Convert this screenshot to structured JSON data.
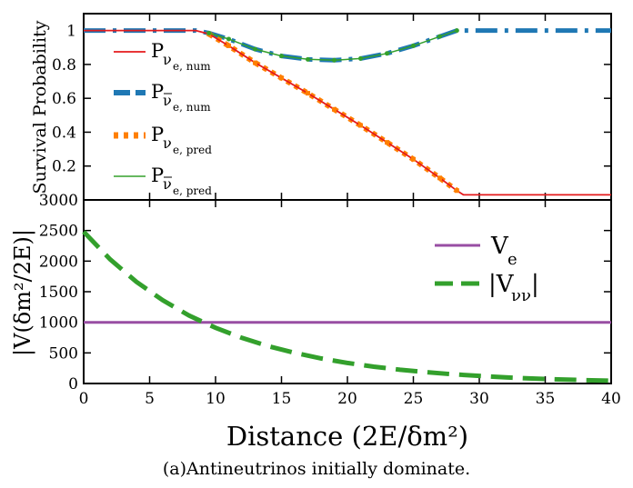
{
  "caption": "(a)Antineutrinos initially dominate.",
  "colors": {
    "nue_num": "#e41a1c",
    "nuebar_num": "#1f78b4",
    "nue_pred": "#ff7f00",
    "nuebar_pred": "#33a02c",
    "Ve": "#984ea3",
    "Vnunu": "#33a02c"
  },
  "chart_data": [
    {
      "type": "line",
      "ylabel": "Survival Probability",
      "xlim": [
        0,
        40
      ],
      "ylim": [
        0,
        1.1
      ],
      "yticks": [
        "0.2",
        "0.4",
        "0.6",
        "0.8",
        "1"
      ],
      "ytick_values": [
        0.2,
        0.4,
        0.6,
        0.8,
        1.0
      ],
      "grid": false,
      "legend_placement": "left",
      "series": [
        {
          "key": "nue_num",
          "legend_main": "P",
          "legend_sub1": "ν",
          "legend_sub2": "e, num",
          "legend_bar": false,
          "style": "solid",
          "x": [
            0,
            8.5,
            9.5,
            11,
            13,
            15,
            17,
            19,
            21,
            23,
            25,
            27,
            28.3,
            28.8,
            40
          ],
          "y": [
            1.0,
            1.0,
            0.98,
            0.91,
            0.81,
            0.72,
            0.63,
            0.535,
            0.44,
            0.34,
            0.24,
            0.13,
            0.055,
            0.03,
            0.03
          ]
        },
        {
          "key": "nuebar_num",
          "legend_main": "P",
          "legend_sub1": "ν",
          "legend_sub2": "e, num",
          "legend_bar": true,
          "style": "dashdot",
          "x": [
            0,
            8.5,
            9.5,
            11,
            13,
            15,
            17,
            19,
            21,
            23,
            25,
            27,
            28.3,
            40
          ],
          "y": [
            1.0,
            1.0,
            0.985,
            0.95,
            0.89,
            0.85,
            0.83,
            0.825,
            0.835,
            0.865,
            0.91,
            0.965,
            1.0,
            1.0
          ]
        },
        {
          "key": "nue_pred",
          "legend_main": "P",
          "legend_sub1": "ν",
          "legend_sub2": "e, pred",
          "legend_bar": false,
          "style": "dotted",
          "x": [
            9.5,
            11,
            13,
            15,
            17,
            19,
            21,
            23,
            25,
            27,
            28.3
          ],
          "y": [
            0.98,
            0.91,
            0.81,
            0.72,
            0.63,
            0.535,
            0.44,
            0.34,
            0.24,
            0.13,
            0.055
          ]
        },
        {
          "key": "nuebar_pred",
          "legend_main": "P",
          "legend_sub1": "ν",
          "legend_sub2": "e, pred",
          "legend_bar": true,
          "style": "thin",
          "x": [
            9.5,
            11,
            13,
            15,
            17,
            19,
            21,
            23,
            25,
            27,
            28.3
          ],
          "y": [
            0.985,
            0.95,
            0.89,
            0.85,
            0.83,
            0.825,
            0.835,
            0.865,
            0.91,
            0.965,
            1.0
          ]
        }
      ]
    },
    {
      "type": "line",
      "ylabel": "|V(δm²/2E)|",
      "xlabel": "Distance (2E/δm²)",
      "xlim": [
        0,
        40
      ],
      "ylim": [
        0,
        3000
      ],
      "xticks": [
        "0",
        "5",
        "10",
        "15",
        "20",
        "25",
        "30",
        "35",
        "40"
      ],
      "xtick_values": [
        0,
        5,
        10,
        15,
        20,
        25,
        30,
        35,
        40
      ],
      "yticks": [
        "0",
        "500",
        "1000",
        "1500",
        "2000",
        "2500",
        "3000"
      ],
      "ytick_values": [
        0,
        500,
        1000,
        1500,
        2000,
        2500,
        3000
      ],
      "grid": false,
      "legend_placement": "right",
      "series": [
        {
          "key": "Ve",
          "legend_main": "V",
          "legend_sub": "e",
          "style": "solid",
          "x": [
            0,
            40
          ],
          "y": [
            1000,
            1000
          ]
        },
        {
          "key": "Vnunu",
          "legend_main": "|V",
          "legend_sub": "νν",
          "legend_end": "|",
          "style": "dashed",
          "x": [
            0,
            2,
            4,
            6,
            8,
            10,
            12,
            14,
            16,
            18,
            20,
            22,
            24,
            26,
            28,
            30,
            32,
            34,
            36,
            38,
            40
          ],
          "y": [
            2480,
            2030,
            1660,
            1360,
            1110,
            910,
            745,
            610,
            500,
            410,
            335,
            275,
            225,
            185,
            150,
            125,
            100,
            82,
            67,
            55,
            45
          ]
        }
      ]
    }
  ]
}
